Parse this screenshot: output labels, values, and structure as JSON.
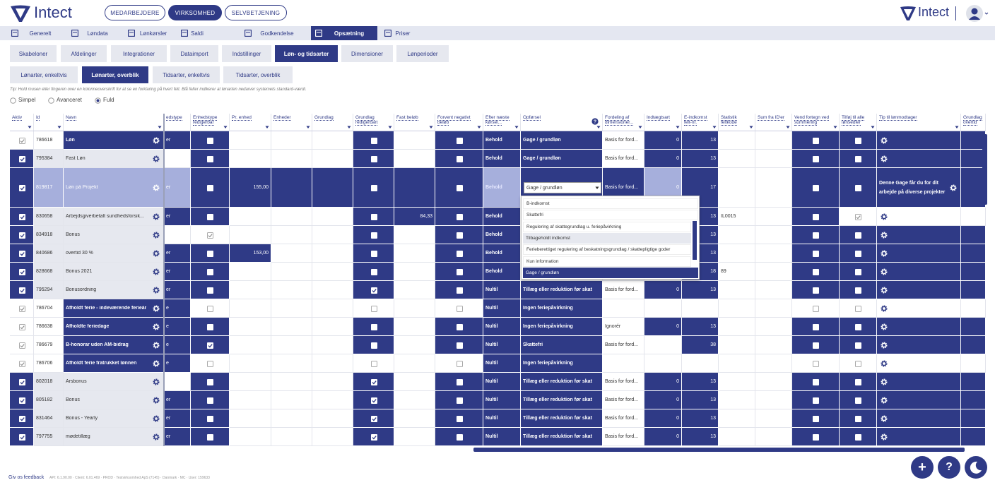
{
  "header": {
    "logo": "Intect",
    "nav": [
      "MEDARBEJDERE",
      "VIRKSOMHED",
      "SELVBETJENING"
    ],
    "active_nav": 1,
    "logo_right": "Intect"
  },
  "tabs": {
    "items": [
      "Generelt",
      "Løndata",
      "Lønkørsler",
      "Saldi",
      "Godkendelse",
      "Opsætning",
      "Priser"
    ],
    "active": 5
  },
  "subtabs": {
    "items": [
      "Skabeloner",
      "Afdelinger",
      "Integrationer",
      "Dataimport",
      "Indstillinger",
      "Løn- og tidsarter",
      "Dimensioner",
      "Lønperioder"
    ],
    "active": 5
  },
  "subsubtabs": {
    "items": [
      "Lønarter, enkeltvis",
      "Lønarter, overblik",
      "Tidsarter, enkeltvis",
      "Tidsarter, overblik"
    ],
    "active": 1
  },
  "tip": "Tip: Hold musen eller fingeren over en kolonneoverskrift for at se en forklaring på hvert felt. Blå felter indikerer at lønarten nedarver systemets standard-værdi.",
  "view_modes": {
    "options": [
      "Simpel",
      "Avanceret",
      "Fuld"
    ],
    "selected": 2
  },
  "table": {
    "columns": [
      "Aktiv",
      "Id",
      "Navn",
      "edstype",
      "Enhedstype redigerbar",
      "Pr. enhed",
      "Enheder",
      "Grundlag",
      "Grundlag redigerbart",
      "Fast beløb",
      "Forvent negativt beløb",
      "Efter næste kørsel...",
      "Opførsel",
      "Fordeling af dimensioner...",
      "Indtægtsart",
      "E-indkomst felt-nr.",
      "Statistik feltkode",
      "Sum fra ID'er",
      "Vend fortegn ved summering",
      "Tilføj til alle lønsedler",
      "Tip til lønmodtager",
      "Grundlag overtid"
    ],
    "rows": [
      {
        "id": "786618",
        "name": "Løn",
        "unit_type": "er",
        "after": "Behold",
        "behavior": "Gage / grundløn",
        "distribution": "Basis for ford...",
        "income_type": "0",
        "eincome": "13"
      },
      {
        "id": "795384",
        "name": "Fast Løn",
        "after": "Behold",
        "behavior": "Gage / grundløn",
        "distribution": "Basis for ford...",
        "income_type": "0",
        "eincome": "13"
      },
      {
        "id": "819817",
        "name": "Løn på Projekt",
        "unit_type": "er",
        "per_unit": "155,00",
        "after": "Behold",
        "behavior": "Gage / grundløn",
        "distribution": "Basis for ford...",
        "income_type": "0",
        "eincome": "17",
        "tip": "Denne Gage får du for dit arbejde på diverse projekter"
      },
      {
        "id": "830658",
        "name": "Arbejdsgiverbetalt sundhedsforsik...",
        "unit_type": "er",
        "fixed": "84,33",
        "after": "Behold",
        "eincome": "13",
        "statistic": "IL0015"
      },
      {
        "id": "834918",
        "name": "Bonus",
        "after": "Behold",
        "eincome": "13"
      },
      {
        "id": "840686",
        "name": "overtid 30 %",
        "unit_type": "er",
        "per_unit": "153,00",
        "after": "Behold",
        "eincome": "13"
      },
      {
        "id": "828668",
        "name": "Bonus 2021",
        "unit_type": "er",
        "after": "Behold",
        "eincome": "18",
        "statistic": "89"
      },
      {
        "id": "795294",
        "name": "Bonusordning",
        "unit_type": "er",
        "after": "Nultil",
        "behavior": "Tillæg eller reduktion før skat",
        "distribution": "Basis for ford...",
        "income_type": "0",
        "eincome": "13"
      },
      {
        "id": "786704",
        "name": "Afholdt ferie - indeværende ferieår",
        "unit_type": "e",
        "after": "Nultil",
        "behavior": "Ingen feriepåvirkning"
      },
      {
        "id": "786638",
        "name": "Afholdte feriedage",
        "unit_type": "e",
        "after": "Nultil",
        "behavior": "Ingen feriepåvirkning",
        "distribution": "Ignorér",
        "income_type": "0",
        "eincome": "13"
      },
      {
        "id": "786679",
        "name": "B-honorar uden AM-bidrag",
        "unit_type": "e",
        "after": "Nultil",
        "behavior": "Skattefri",
        "distribution": "Basis for ford...",
        "eincome": "38"
      },
      {
        "id": "786706",
        "name": "Afholdt ferie fratrukket lønnen",
        "unit_type": "e",
        "after": "Nultil",
        "behavior": "Ingen feriepåvirkning"
      },
      {
        "id": "802018",
        "name": "Årsbonus",
        "after": "Nultil",
        "behavior": "Tillæg eller reduktion før skat",
        "distribution": "Basis for ford...",
        "income_type": "0",
        "eincome": "13"
      },
      {
        "id": "805182",
        "name": "Bonus",
        "unit_type": "er",
        "after": "Nultil",
        "behavior": "Tillæg eller reduktion før skat",
        "distribution": "Basis for ford...",
        "income_type": "0",
        "eincome": "13"
      },
      {
        "id": "831464",
        "name": "Bonus - Yearly",
        "unit_type": "er",
        "after": "Nultil",
        "behavior": "Tillæg eller reduktion før skat",
        "distribution": "Basis for ford...",
        "income_type": "0",
        "eincome": "13"
      },
      {
        "id": "797755",
        "name": "mødetillæg",
        "unit_type": "er",
        "after": "Nultil",
        "behavior": "Tillæg eller reduktion før skat",
        "distribution": "Basis for ford...",
        "income_type": "0",
        "eincome": "13"
      }
    ]
  },
  "dropdown": {
    "options": [
      "B-indkomst",
      "Skattefri",
      "Regulering af skattegrundlag u. feriepåvirkning",
      "Tilbageholdt indkomst",
      "Ferieberettiget regulering af beskatningsgrundlag / skattepligtige goder",
      "Kun information",
      "Gage / grundløn"
    ],
    "selected": 6,
    "hovered": 3
  },
  "footer": {
    "feedback": "Giv os feedback",
    "info": "API: 6.1.90.00 · Client: 6.01.469 · PROD · Testvirksomhed ApS (7145) · Danmark · MC · User: 159633"
  },
  "actions": [
    "+",
    "?"
  ]
}
